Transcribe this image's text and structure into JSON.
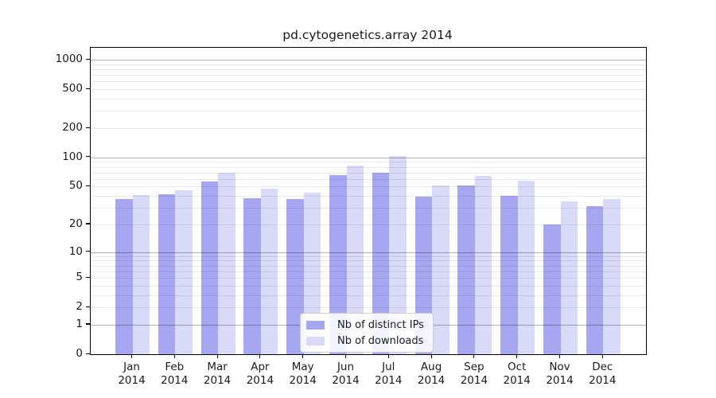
{
  "title": "pd.cytogenetics.array 2014",
  "colors": {
    "ips_bar": "#a6a6f1",
    "downloads_bar": "#d9d9f8",
    "axis": "#000000",
    "major_grid": "#b3b3b3",
    "minor_grid": "#e9e9e9",
    "legend_border": "#cccccc"
  },
  "y_axis": {
    "tick_labels": [
      "1000",
      "500",
      "200",
      "100",
      "50",
      "20",
      "10",
      "5",
      "2",
      "1",
      "0"
    ],
    "tick_values": [
      1000,
      500,
      200,
      100,
      50,
      20,
      10,
      5,
      2,
      1,
      0
    ],
    "minor_values": [
      2,
      3,
      4,
      5,
      6,
      7,
      8,
      9,
      20,
      30,
      40,
      50,
      60,
      70,
      80,
      90,
      200,
      300,
      400,
      500,
      600,
      700,
      800,
      900
    ],
    "major_values": [
      1,
      10,
      100,
      1000
    ]
  },
  "x_axis": {
    "months": [
      "Jan",
      "Feb",
      "Mar",
      "Apr",
      "May",
      "Jun",
      "Jul",
      "Aug",
      "Sep",
      "Oct",
      "Nov",
      "Dec"
    ],
    "year": "2014"
  },
  "legend": {
    "items": [
      {
        "label": "Nb of distinct IPs",
        "color_key": "ips_bar"
      },
      {
        "label": "Nb of downloads",
        "color_key": "downloads_bar"
      }
    ]
  },
  "chart_data": {
    "type": "bar",
    "title": "pd.cytogenetics.array 2014",
    "categories": [
      "Jan 2014",
      "Feb 2014",
      "Mar 2014",
      "Apr 2014",
      "May 2014",
      "Jun 2014",
      "Jul 2014",
      "Aug 2014",
      "Sep 2014",
      "Oct 2014",
      "Nov 2014",
      "Dec 2014"
    ],
    "series": [
      {
        "name": "Nb of distinct IPs",
        "values": [
          37,
          42,
          57,
          38,
          37,
          66,
          70,
          39,
          51,
          40,
          20,
          31
        ]
      },
      {
        "name": "Nb of downloads",
        "values": [
          41,
          46,
          70,
          48,
          43,
          82,
          103,
          51,
          64,
          58,
          35,
          37
        ]
      }
    ],
    "y_scale": "log1p",
    "y_ticks": [
      0,
      1,
      2,
      5,
      10,
      20,
      50,
      100,
      200,
      500,
      1000
    ],
    "ylim": [
      0,
      1325
    ],
    "xlabel": "",
    "ylabel": "",
    "grid": "horizontal major and minor, drawn over bars",
    "legend_position": "lower center"
  }
}
